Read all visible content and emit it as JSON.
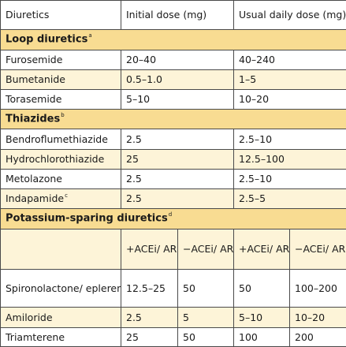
{
  "header": {
    "col1": "Diuretics",
    "col2": "Initial dose (mg)",
    "col3": "Usual daily dose (mg)"
  },
  "loop": {
    "title": "Loop diuretics",
    "sup": "a",
    "rows": [
      {
        "name": "Furosemide",
        "initial": "20–40",
        "usual": "40–240"
      },
      {
        "name": "Bumetanide",
        "initial": "0.5–1.0",
        "usual": "1–5"
      },
      {
        "name": "Torasemide",
        "initial": "5–10",
        "usual": "10–20"
      }
    ]
  },
  "thiazides": {
    "title": "Thiazides",
    "sup": "b",
    "rows": [
      {
        "name": "Bendroflumethiazide",
        "initial": "2.5",
        "usual": "2.5–10"
      },
      {
        "name": "Hydrochlorothiazide",
        "initial": "25",
        "usual": "12.5–100"
      },
      {
        "name": "Metolazone",
        "initial": "2.5",
        "usual": "2.5–10"
      },
      {
        "name": "Indapamide",
        "name_sup": "c",
        "initial": "2.5",
        "usual": "2.5–5"
      }
    ]
  },
  "potassium": {
    "title": "Potassium-sparing diuretics",
    "sup": "d",
    "subheaders": {
      "a": "+ACEi/ ARB",
      "b": "−ACEi/ ARB",
      "c": "+ACEi/ ARB",
      "d": "−ACEi/ ARB"
    },
    "rows": [
      {
        "name": "Spironolactone/ eplerenone",
        "v1": "12.5–25",
        "v2": "50",
        "v3": "50",
        "v4": "100–200"
      },
      {
        "name": "Amiloride",
        "v1": "2.5",
        "v2": "5",
        "v3": "5–10",
        "v4": "10–20"
      },
      {
        "name": "Triamterene",
        "v1": "25",
        "v2": "50",
        "v3": "100",
        "v4": "200"
      }
    ]
  }
}
